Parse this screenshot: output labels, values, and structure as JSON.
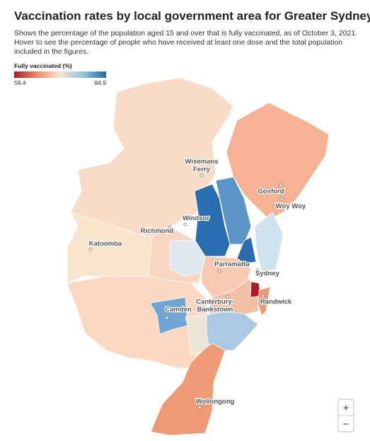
{
  "header": {
    "title": "Vaccination rates by local government area for Greater Sydney",
    "subtitle": [
      "Shows the percentage of the population aged 15 and over that is fully vaccinated, as of October 3, 2021.",
      "Hover to see the percentage of people who have received at least one dose and the total population",
      "included in the figures."
    ]
  },
  "legend": {
    "title": "Fully vaccinated (%)",
    "min": 58.4,
    "max": 84.9
  },
  "places": [
    {
      "label": [
        "Wisemans",
        "Ferry"
      ]
    },
    {
      "label": [
        "Gosford"
      ]
    },
    {
      "label": [
        "Woy Woy"
      ]
    },
    {
      "label": [
        "Windsor"
      ]
    },
    {
      "label": [
        "Richmond"
      ]
    },
    {
      "label": [
        "Katoomba"
      ]
    },
    {
      "label": [
        "Parramatta"
      ]
    },
    {
      "label": [
        "Sydney"
      ]
    },
    {
      "label": [
        "Randwick"
      ]
    },
    {
      "label": [
        "Canterbury-",
        "Bankstown"
      ]
    },
    {
      "label": [
        "Camden"
      ]
    },
    {
      "label": [
        "Wollongong"
      ]
    }
  ],
  "zoom": {
    "in": "+",
    "out": "−"
  }
}
